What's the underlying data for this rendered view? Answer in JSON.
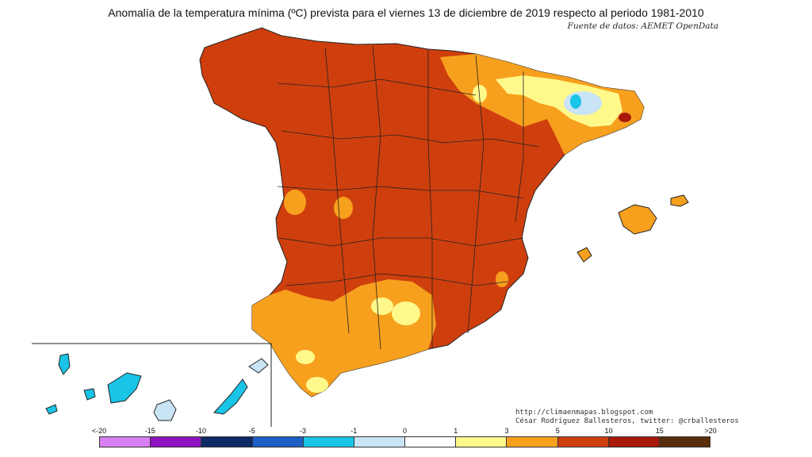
{
  "title": "Anomalía de la temperatura mínima (ºC) prevista para el viernes 13 de diciembre de 2019 respecto al periodo 1981-2010",
  "source": "Fuente de datos: AEMET OpenData",
  "credits": {
    "blog": "http://climaenmapas.blogspot.com",
    "author": "César Rodríguez Ballesteros, twitter: @crballesteros"
  },
  "legend": {
    "ticks": [
      "<-20",
      "-15",
      "-10",
      "-5",
      "-3",
      "-1",
      "0",
      "1",
      "3",
      "5",
      "10",
      "15",
      ">20"
    ],
    "colors": [
      "#d77ff0",
      "#8f12c0",
      "#0d2a66",
      "#1d5fc5",
      "#19c4e6",
      "#c8e4f5",
      "#ffffff",
      "#fff98c",
      "#f7a01e",
      "#cf3f0d",
      "#a8190a",
      "#5a2e0a"
    ]
  },
  "map_colors": {
    "anomaly_5_10": "#cf3f0d",
    "anomaly_3_5": "#f7a01e",
    "anomaly_1_3": "#fff98c",
    "anomaly_minus3_minus1": "#19c4e6",
    "anomaly_minus1_0": "#c8e4f5",
    "anomaly_10_15": "#a8190a"
  }
}
